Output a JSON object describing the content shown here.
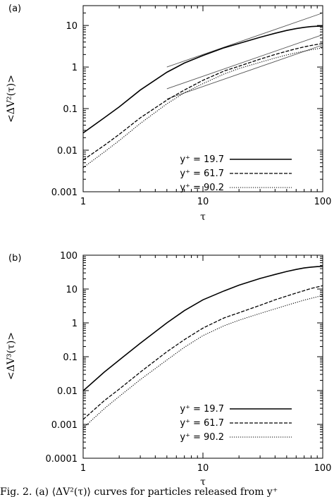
{
  "caption": "Fig. 2. (a) ⟨ΔV²(τ)⟩ curves for particles released from y⁺",
  "chart_data": [
    {
      "panel_label": "(a)",
      "type": "line",
      "xscale": "log",
      "yscale": "log",
      "xlim": [
        1,
        100
      ],
      "ylim": [
        0.001,
        30
      ],
      "xticks": [
        "1",
        "10",
        "100"
      ],
      "yticks": [
        "0.001",
        "0.01",
        "0.1",
        "1",
        "10"
      ],
      "ytick_values": [
        0.001,
        0.01,
        0.1,
        1,
        10
      ],
      "xlabel": "τ",
      "ylabel": "<ΔV²(τ)>",
      "legend_position": "bottom-right",
      "series": [
        {
          "name": "y⁺ = 19.7",
          "style": "solid",
          "x": [
            1,
            1.5,
            2,
            3,
            5,
            7,
            10,
            15,
            20,
            30,
            40,
            50,
            60,
            70,
            80,
            90,
            100
          ],
          "y": [
            0.026,
            0.06,
            0.11,
            0.28,
            0.75,
            1.25,
            1.9,
            2.9,
            3.7,
            5.2,
            6.5,
            7.6,
            8.4,
            9.0,
            9.4,
            9.6,
            9.7
          ]
        },
        {
          "name": "y⁺ = 61.7",
          "style": "dashed",
          "x": [
            1,
            1.5,
            2,
            3,
            5,
            7,
            10,
            15,
            20,
            30,
            40,
            50,
            60,
            70,
            80,
            90,
            100
          ],
          "y": [
            0.0058,
            0.013,
            0.024,
            0.06,
            0.16,
            0.28,
            0.48,
            0.8,
            1.05,
            1.55,
            2.0,
            2.4,
            2.75,
            3.05,
            3.3,
            3.5,
            3.7
          ]
        },
        {
          "name": "y⁺ = 90.2",
          "style": "dotted",
          "x": [
            1,
            1.5,
            2,
            3,
            5,
            7,
            10,
            15,
            20,
            30,
            40,
            50,
            60,
            70,
            80,
            90,
            100
          ],
          "y": [
            0.0038,
            0.009,
            0.017,
            0.044,
            0.13,
            0.24,
            0.4,
            0.68,
            0.92,
            1.3,
            1.65,
            1.95,
            2.2,
            2.4,
            2.6,
            2.75,
            2.9
          ]
        }
      ],
      "reference_lines": [
        {
          "x": [
            5,
            100
          ],
          "y": [
            1.0,
            20
          ]
        },
        {
          "x": [
            5,
            100
          ],
          "y": [
            0.3,
            6.0
          ]
        },
        {
          "x": [
            5,
            100
          ],
          "y": [
            0.17,
            3.4
          ]
        }
      ]
    },
    {
      "panel_label": "(b)",
      "type": "line",
      "xscale": "log",
      "yscale": "log",
      "xlim": [
        1,
        100
      ],
      "ylim": [
        0.0001,
        100
      ],
      "xticks": [
        "1",
        "10",
        "100"
      ],
      "yticks": [
        "0.0001",
        "0.001",
        "0.01",
        "0.1",
        "1",
        "10",
        "100"
      ],
      "ytick_values": [
        0.0001,
        0.001,
        0.01,
        0.1,
        1,
        10,
        100
      ],
      "xlabel": "τ",
      "ylabel": "<ΔV³(τ)>",
      "legend_position": "bottom-right",
      "series": [
        {
          "name": "y⁺ = 19.7",
          "style": "solid",
          "x": [
            1,
            1.5,
            2,
            3,
            5,
            7,
            10,
            15,
            20,
            30,
            40,
            50,
            60,
            70,
            80,
            90,
            100
          ],
          "y": [
            0.0098,
            0.035,
            0.08,
            0.25,
            1.0,
            2.3,
            4.8,
            8.8,
            13,
            20.5,
            27,
            33,
            38,
            42,
            44.5,
            46,
            46.5
          ]
        },
        {
          "name": "y⁺ = 61.7",
          "style": "dashed",
          "x": [
            1,
            1.5,
            2,
            3,
            5,
            7,
            10,
            15,
            20,
            30,
            40,
            50,
            60,
            70,
            80,
            90,
            100
          ],
          "y": [
            0.0014,
            0.005,
            0.011,
            0.035,
            0.14,
            0.32,
            0.7,
            1.4,
            2.0,
            3.3,
            4.8,
            6.2,
            7.6,
            9.0,
            10.4,
            11.5,
            12.5
          ]
        },
        {
          "name": "y⁺ = 90.2",
          "style": "dotted",
          "x": [
            1,
            1.5,
            2,
            3,
            5,
            7,
            10,
            15,
            20,
            30,
            40,
            50,
            60,
            70,
            80,
            90,
            100
          ],
          "y": [
            0.00078,
            0.0029,
            0.0067,
            0.021,
            0.08,
            0.19,
            0.42,
            0.82,
            1.2,
            1.9,
            2.6,
            3.3,
            4.0,
            4.7,
            5.3,
            5.9,
            6.5
          ]
        }
      ]
    }
  ]
}
